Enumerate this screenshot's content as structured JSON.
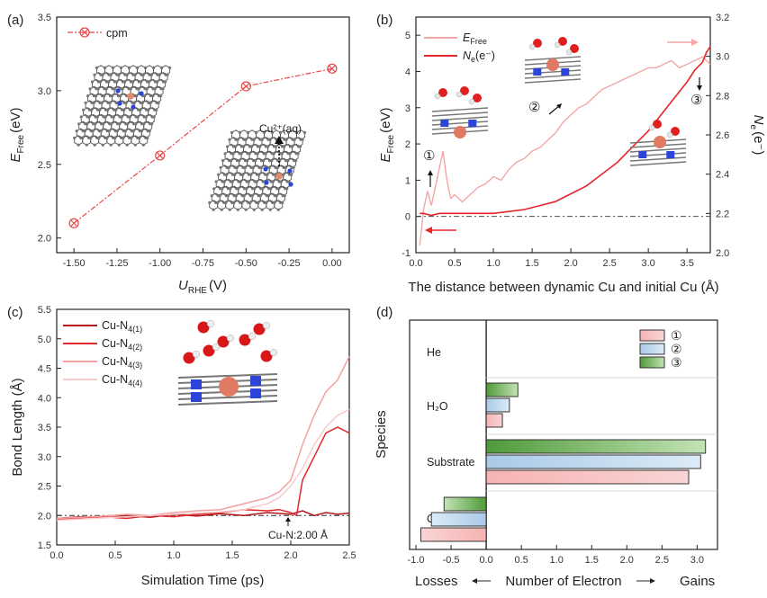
{
  "panels": {
    "a": {
      "label": "(a)"
    },
    "b": {
      "label": "(b)"
    },
    "c": {
      "label": "(c)"
    },
    "d": {
      "label": "(d)"
    }
  },
  "annotations": {
    "a_cu_aq": "Cu²⁺(aq)",
    "b_marker1": "①",
    "b_marker2": "②",
    "b_marker3": "③",
    "c_ref": "Cu-N:2.00 Å",
    "d_losses": "Losses",
    "d_gains": "Gains",
    "d_center": "Number of Electron"
  },
  "colors": {
    "cpm": "#e8474a",
    "efree": "#f4a6a6",
    "ne": "#e6262a",
    "n1": "#b4151b",
    "n2": "#e3272a",
    "n3": "#f3a0a0",
    "n4": "#f8cccc",
    "s1": "#f4a7a7",
    "s2": "#b7d3eb",
    "s3": "#63a64f"
  },
  "chart_data": [
    {
      "id": "a",
      "type": "line",
      "xlabel_main": "U",
      "xlabel_sub": "RHE",
      "xlabel_unit": "(V)",
      "ylabel_main": "E",
      "ylabel_sub": "Free",
      "ylabel_unit": "(eV)",
      "xlim": [
        -1.6,
        0.1
      ],
      "ylim": [
        1.9,
        3.5
      ],
      "xticks": [
        -1.5,
        -1.25,
        -1.0,
        -0.75,
        -0.5,
        -0.25,
        0.0
      ],
      "xtick_labels": [
        "-1.50",
        "-1.25",
        "-1.00",
        "-0.75",
        "-0.50",
        "-0.25",
        "0.00"
      ],
      "yticks": [
        2.0,
        2.5,
        3.0,
        3.5
      ],
      "ytick_labels": [
        "2.0",
        "2.5",
        "3.0",
        "3.5"
      ],
      "series": [
        {
          "name": "cpm",
          "x": [
            -1.5,
            -1.0,
            -0.5,
            0.0
          ],
          "y": [
            2.1,
            2.56,
            3.03,
            3.15
          ]
        }
      ]
    },
    {
      "id": "b",
      "type": "line",
      "xlabel": "The distance between dynamic Cu and initial Cu (Å)",
      "ylabel_main": "E",
      "ylabel_sub": "Free",
      "ylabel_unit": "(eV)",
      "y2label_main": "N",
      "y2label_sub": "e",
      "y2label_unit": "(e⁻)",
      "xlim": [
        0,
        3.8
      ],
      "ylim": [
        -1,
        5.5
      ],
      "y2lim": [
        2.0,
        3.2
      ],
      "xticks": [
        0.0,
        0.5,
        1.0,
        1.5,
        2.0,
        2.5,
        3.0,
        3.5
      ],
      "xtick_labels": [
        "0.0",
        "0.5",
        "1.0",
        "1.5",
        "2.0",
        "2.5",
        "3.0",
        "3.5"
      ],
      "yticks": [
        -1,
        0,
        1,
        2,
        3,
        4,
        5
      ],
      "ytick_labels": [
        "-1",
        "0",
        "1",
        "2",
        "3",
        "4",
        "5"
      ],
      "y2ticks": [
        2.0,
        2.2,
        2.4,
        2.6,
        2.8,
        3.0,
        3.2
      ],
      "y2tick_labels": [
        "2.0",
        "2.2",
        "2.4",
        "2.6",
        "2.8",
        "3.0",
        "3.2"
      ],
      "legend": [
        {
          "main": "E",
          "sub": "Free",
          "tail": ""
        },
        {
          "main": "N",
          "sub": "e",
          "tail": "(e⁻)"
        }
      ],
      "series": [
        {
          "id": "efree",
          "axis": "left",
          "x": [
            0.05,
            0.1,
            0.15,
            0.2,
            0.25,
            0.3,
            0.35,
            0.4,
            0.45,
            0.5,
            0.6,
            0.7,
            0.8,
            0.9,
            1.0,
            1.1,
            1.2,
            1.3,
            1.4,
            1.5,
            1.6,
            1.7,
            1.8,
            1.9,
            2.0,
            2.1,
            2.2,
            2.3,
            2.4,
            2.5,
            2.6,
            2.7,
            2.8,
            2.9,
            3.0,
            3.1,
            3.2,
            3.3,
            3.4,
            3.5,
            3.6,
            3.7,
            3.8
          ],
          "y": [
            -0.8,
            0.2,
            0.7,
            0.3,
            0.8,
            1.3,
            1.8,
            1.0,
            0.5,
            0.6,
            0.4,
            0.6,
            0.8,
            0.9,
            1.1,
            1.0,
            1.3,
            1.5,
            1.6,
            1.8,
            1.9,
            2.1,
            2.3,
            2.6,
            2.8,
            3.0,
            3.1,
            3.3,
            3.5,
            3.6,
            3.7,
            3.8,
            3.9,
            4.0,
            4.1,
            4.1,
            4.2,
            4.3,
            4.1,
            4.2,
            4.3,
            4.4,
            4.2
          ]
        },
        {
          "id": "ne",
          "axis": "right",
          "x": [
            0.05,
            0.1,
            0.2,
            0.3,
            0.5,
            0.8,
            1.0,
            1.2,
            1.4,
            1.6,
            1.8,
            2.0,
            2.2,
            2.4,
            2.6,
            2.8,
            3.0,
            3.2,
            3.4,
            3.5,
            3.6,
            3.7,
            3.75,
            3.8
          ],
          "y": [
            2.2,
            2.2,
            2.19,
            2.2,
            2.2,
            2.2,
            2.2,
            2.21,
            2.22,
            2.24,
            2.26,
            2.3,
            2.34,
            2.4,
            2.46,
            2.54,
            2.62,
            2.72,
            2.82,
            2.87,
            2.93,
            2.97,
            3.02,
            3.05
          ]
        }
      ]
    },
    {
      "id": "c",
      "type": "line",
      "xlabel": "Simulation Time (ps)",
      "ylabel": "Bond Length (Å)",
      "xlim": [
        0,
        2.5
      ],
      "ylim": [
        1.5,
        5.5
      ],
      "xticks": [
        0.0,
        0.5,
        1.0,
        1.5,
        2.0,
        2.5
      ],
      "xtick_labels": [
        "0.0",
        "0.5",
        "1.0",
        "1.5",
        "2.0",
        "2.5"
      ],
      "yticks": [
        1.5,
        2.0,
        2.5,
        3.0,
        3.5,
        4.0,
        4.5,
        5.0,
        5.5
      ],
      "ytick_labels": [
        "1.5",
        "2.0",
        "2.5",
        "3.0",
        "3.5",
        "4.0",
        "4.5",
        "5.0",
        "5.5"
      ],
      "reference_y": 2.0,
      "series": [
        {
          "main": "Cu-N",
          "sub": "4(1)",
          "color_key": "n1",
          "x": [
            0.0,
            0.2,
            0.4,
            0.6,
            0.8,
            1.0,
            1.2,
            1.4,
            1.6,
            1.8,
            2.0,
            2.1,
            2.2,
            2.3,
            2.4,
            2.5
          ],
          "y": [
            1.95,
            1.98,
            1.96,
            2.0,
            1.97,
            2.02,
            1.99,
            2.03,
            2.0,
            2.05,
            2.02,
            2.08,
            2.0,
            2.05,
            2.02,
            2.04
          ]
        },
        {
          "main": "Cu-N",
          "sub": "4(2)",
          "color_key": "n2",
          "x": [
            0.0,
            0.2,
            0.4,
            0.6,
            0.8,
            1.0,
            1.2,
            1.4,
            1.6,
            1.8,
            1.9,
            2.0,
            2.05,
            2.1,
            2.2,
            2.3,
            2.4,
            2.5
          ],
          "y": [
            1.93,
            1.96,
            1.98,
            1.95,
            2.0,
            1.98,
            2.02,
            2.05,
            2.1,
            2.08,
            2.1,
            2.05,
            2.0,
            2.6,
            3.0,
            3.4,
            3.5,
            3.4
          ]
        },
        {
          "main": "Cu-N",
          "sub": "4(3)",
          "color_key": "n3",
          "x": [
            0.0,
            0.2,
            0.4,
            0.6,
            0.8,
            1.0,
            1.2,
            1.4,
            1.6,
            1.8,
            1.9,
            2.0,
            2.1,
            2.2,
            2.3,
            2.4,
            2.5
          ],
          "y": [
            1.95,
            1.97,
            1.99,
            2.02,
            2.0,
            2.05,
            2.08,
            2.1,
            2.2,
            2.3,
            2.4,
            2.6,
            3.2,
            3.7,
            4.1,
            4.3,
            4.7
          ]
        },
        {
          "main": "Cu-N",
          "sub": "4(4)",
          "color_key": "n4",
          "x": [
            0.0,
            0.2,
            0.4,
            0.6,
            0.8,
            1.0,
            1.2,
            1.4,
            1.6,
            1.8,
            1.9,
            2.0,
            2.1,
            2.2,
            2.3,
            2.4,
            2.5
          ],
          "y": [
            1.92,
            1.94,
            1.96,
            1.98,
            2.0,
            2.02,
            2.04,
            2.06,
            2.1,
            2.2,
            2.3,
            2.5,
            2.8,
            3.2,
            3.5,
            3.7,
            3.8
          ]
        }
      ]
    },
    {
      "id": "d",
      "type": "bar",
      "orientation": "horizontal",
      "ylabel": "Species",
      "xlim": [
        -1.0,
        3.2
      ],
      "xticks": [
        -1.0,
        -0.5,
        0.0,
        0.5,
        1.0,
        1.5,
        2.0,
        2.5,
        3.0
      ],
      "xtick_labels": [
        "-1.0",
        "-0.5",
        "0.0",
        "0.5",
        "1.0",
        "1.5",
        "2.0",
        "2.5",
        "3.0"
      ],
      "categories": [
        "He",
        "H₂O",
        "Substrate",
        "Cu"
      ],
      "legend": [
        "①",
        "②",
        "③"
      ],
      "series": [
        {
          "name": "①",
          "values": [
            0.0,
            0.23,
            2.88,
            -0.93
          ]
        },
        {
          "name": "②",
          "values": [
            0.0,
            0.33,
            3.05,
            -0.78
          ]
        },
        {
          "name": "③",
          "values": [
            0.0,
            0.45,
            3.12,
            -0.6
          ]
        }
      ]
    }
  ]
}
